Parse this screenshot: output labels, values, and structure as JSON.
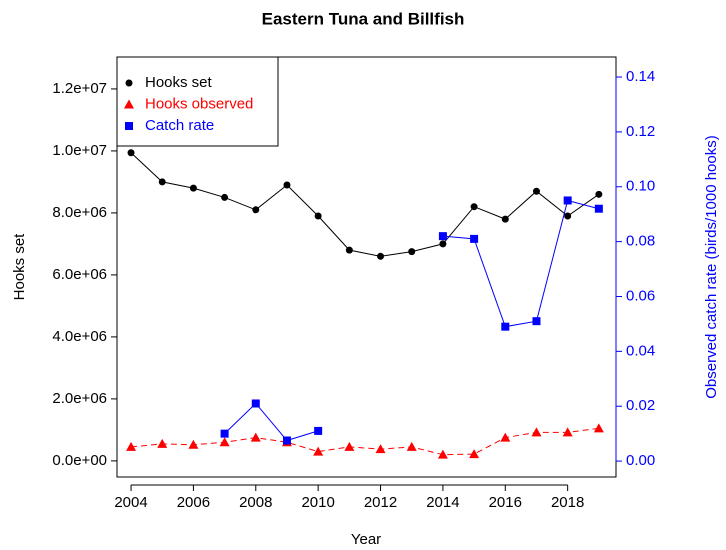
{
  "chart_data": {
    "type": "line",
    "title": "Eastern Tuna and Billfish",
    "xlabel": "Year",
    "ylabel": "Hooks set",
    "y2label": "Observed catch rate (birds/1000 hooks)",
    "x": [
      2004,
      2005,
      2006,
      2007,
      2008,
      2009,
      2010,
      2011,
      2012,
      2013,
      2014,
      2015,
      2016,
      2017,
      2018,
      2019
    ],
    "series": [
      {
        "name": "Hooks set",
        "color": "#000000",
        "marker": "circle",
        "linestyle": "solid",
        "values": [
          9940000,
          9000000,
          8800000,
          8500000,
          8100000,
          8900000,
          7900000,
          6800000,
          6600000,
          6750000,
          7000000,
          8200000,
          7800000,
          8700000,
          7900000,
          8600000
        ]
      },
      {
        "name": "Hooks observed",
        "color": "#ff0000",
        "marker": "triangle",
        "linestyle": "dashed",
        "values": [
          450000,
          550000,
          520000,
          600000,
          750000,
          600000,
          300000,
          450000,
          380000,
          450000,
          200000,
          220000,
          750000,
          920000,
          920000,
          1050000
        ]
      },
      {
        "name": "Catch rate",
        "color": "#0000ff",
        "marker": "square",
        "linestyle": "solid",
        "axis": "y2",
        "values": [
          null,
          null,
          null,
          0.01,
          0.021,
          0.0075,
          0.011,
          null,
          null,
          null,
          0.082,
          0.081,
          0.049,
          0.051,
          0.095,
          0.092
        ]
      }
    ],
    "xlim": [
      2003.55,
      2019.55
    ],
    "xticks": [
      2004,
      2006,
      2008,
      2010,
      2012,
      2014,
      2016,
      2018
    ],
    "ylim": [
      -520000,
      13030000
    ],
    "yticks": [
      {
        "value": 0,
        "label": "0.0e+00"
      },
      {
        "value": 2000000,
        "label": "2.0e+06"
      },
      {
        "value": 4000000,
        "label": "4.0e+06"
      },
      {
        "value": 6000000,
        "label": "6.0e+06"
      },
      {
        "value": 8000000,
        "label": "8.0e+06"
      },
      {
        "value": 10000000,
        "label": "1.0e+07"
      },
      {
        "value": 12000000,
        "label": "1.2e+07"
      }
    ],
    "y2lim": [
      -0.0058,
      0.1473
    ],
    "y2ticks": [
      {
        "value": 0,
        "label": "0.00"
      },
      {
        "value": 0.02,
        "label": "0.02"
      },
      {
        "value": 0.04,
        "label": "0.04"
      },
      {
        "value": 0.06,
        "label": "0.06"
      },
      {
        "value": 0.08,
        "label": "0.08"
      },
      {
        "value": 0.1,
        "label": "0.10"
      },
      {
        "value": 0.12,
        "label": "0.12"
      },
      {
        "value": 0.14,
        "label": "0.14"
      }
    ],
    "y2color": "#0000ff",
    "legend": "top-left"
  }
}
